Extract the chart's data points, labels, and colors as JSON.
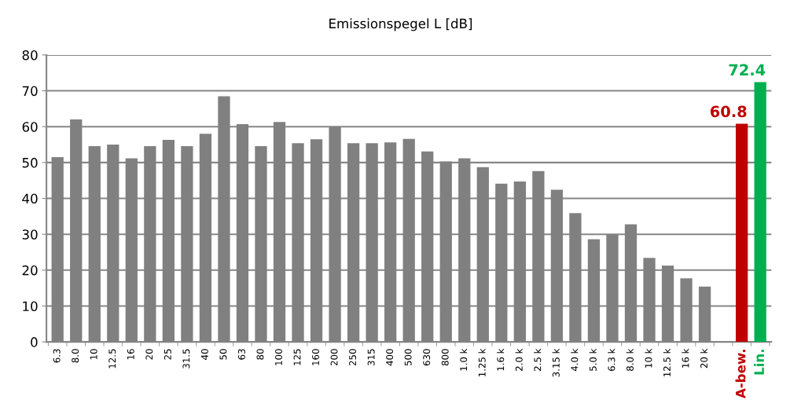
{
  "chart_data": {
    "type": "bar",
    "title": "Emissionspegel L [dB]",
    "categories": [
      "6.3",
      "8.0",
      "10",
      "12.5",
      "16",
      "20",
      "25",
      "31.5",
      "40",
      "50",
      "63",
      "80",
      "100",
      "125",
      "160",
      "200",
      "250",
      "315",
      "400",
      "500",
      "630",
      "800",
      "1.0 k",
      "1.25 k",
      "1.6 k",
      "2.0 k",
      "2.5 k",
      "3.15 k",
      "4.0 k",
      "5.0 k",
      "6.3 k",
      "8.0 k",
      "10 k",
      "12.5 k",
      "16 k",
      "20 k",
      null,
      "A-bew.",
      "Lin."
    ],
    "values": [
      51.5,
      62,
      54.6,
      55,
      51.2,
      54.6,
      56.3,
      54.6,
      58,
      68.5,
      60.7,
      54.6,
      61.3,
      55.4,
      56.5,
      60,
      55.4,
      55.4,
      55.6,
      56.6,
      53.1,
      50.3,
      51.2,
      48.7,
      44.1,
      44.7,
      47.6,
      42.4,
      35.9,
      28.6,
      30,
      32.8,
      23.4,
      21.3,
      17.7,
      15.4,
      null,
      60.8,
      72.4
    ],
    "colors": [
      "#808080",
      "#808080",
      "#808080",
      "#808080",
      "#808080",
      "#808080",
      "#808080",
      "#808080",
      "#808080",
      "#808080",
      "#808080",
      "#808080",
      "#808080",
      "#808080",
      "#808080",
      "#808080",
      "#808080",
      "#808080",
      "#808080",
      "#808080",
      "#808080",
      "#808080",
      "#808080",
      "#808080",
      "#808080",
      "#808080",
      "#808080",
      "#808080",
      "#808080",
      "#808080",
      "#808080",
      "#808080",
      "#808080",
      "#808080",
      "#808080",
      "#808080",
      "#808080",
      "#c00000",
      "#00b050"
    ],
    "value_labels": [
      null,
      null,
      null,
      null,
      null,
      null,
      null,
      null,
      null,
      null,
      null,
      null,
      null,
      null,
      null,
      null,
      null,
      null,
      null,
      null,
      null,
      null,
      null,
      null,
      null,
      null,
      null,
      null,
      null,
      null,
      null,
      null,
      null,
      null,
      null,
      null,
      null,
      "60.8",
      "72.4"
    ],
    "ylim": [
      0,
      80
    ],
    "yticks": [
      0,
      10,
      20,
      30,
      40,
      50,
      60,
      70,
      80
    ],
    "grid": "y"
  }
}
